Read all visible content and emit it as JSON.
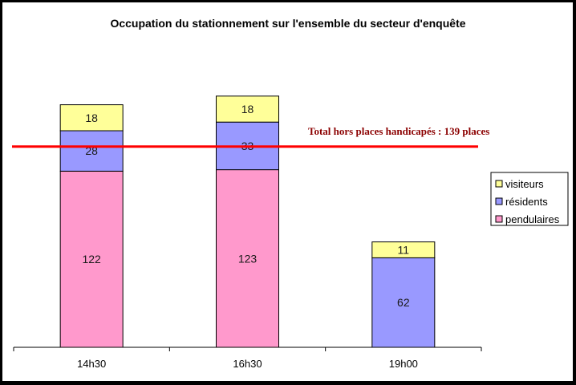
{
  "chart_data": {
    "type": "bar",
    "stacked": true,
    "title": "Occupation du stationnement sur l'ensemble du secteur d'enquête",
    "xlabel": "",
    "ylabel": "",
    "categories": [
      "14h30",
      "16h30",
      "19h00"
    ],
    "series": [
      {
        "name": "pendulaires",
        "values": [
          122,
          123,
          0
        ],
        "color": "#ff99cc"
      },
      {
        "name": "résidents",
        "values": [
          28,
          33,
          62
        ],
        "color": "#9999ff"
      },
      {
        "name": "visiteurs",
        "values": [
          18,
          18,
          11
        ],
        "color": "#ffff99"
      }
    ],
    "legend_order": [
      "visiteurs",
      "résidents",
      "pendulaires"
    ],
    "legend_position": "right",
    "ylim": [
      0,
      182
    ],
    "y_axis_visible": false,
    "grid": false,
    "reference_line": {
      "value": 139,
      "label": "Total hors places handicapés : 139 places",
      "color": "#ff0000",
      "label_color": "#8b0000"
    }
  }
}
